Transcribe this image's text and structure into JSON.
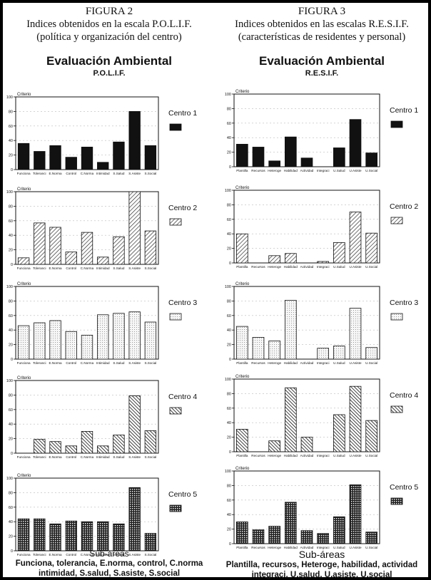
{
  "figures": [
    {
      "number": "FIGURA 2",
      "subtitle1": "Indices obtenidos en la escala P.O.L.I.F.",
      "subtitle2": "(política y organización del centro)",
      "eval_title": "Evaluación Ambiental",
      "scale": "P.O.L.I.F.",
      "x_title": "Sub-áreas",
      "caption1": "Funciona, tolerancia, E.norma, control, C.norma",
      "caption2": "intimidad, S.salud, S.asiste, S.social"
    },
    {
      "number": "FIGURA 3",
      "subtitle1": "Indices obtenidos en las escalas R.E.S.I.F.",
      "subtitle2": "(características de residentes y personal)",
      "eval_title": "Evaluación Ambiental",
      "scale": "R.E.S.I.F.",
      "x_title": "Sub-áreas",
      "caption1": "Plantilla, recursos, Heteroge, habilidad, actividad",
      "caption2": "integraci, U.salud, U.asiste, U.social"
    }
  ],
  "chart_data": [
    {
      "type": "bar",
      "figure": "FIGURA 2",
      "title": "Evaluación Ambiental P.O.L.I.F.",
      "legend": "Centro 1",
      "pattern": "solid",
      "ylabel": "Criterio",
      "xlabel": "",
      "ylim": [
        0,
        100
      ],
      "yticks": [
        0,
        20,
        40,
        60,
        80,
        100
      ],
      "grid": true,
      "legend_position": "right",
      "categories": [
        "Funciona",
        "Toleranci",
        "E.Norma",
        "Control",
        "C.Norma",
        "Intimidad",
        "S.Salud",
        "S.Asiste",
        "S.Social"
      ],
      "values": [
        36,
        25,
        33,
        17,
        31,
        10,
        38,
        80,
        33
      ]
    },
    {
      "type": "bar",
      "figure": "FIGURA 2",
      "title": "",
      "legend": "Centro 2",
      "pattern": "hatch-right",
      "ylabel": "Criterio",
      "xlabel": "",
      "ylim": [
        0,
        100
      ],
      "yticks": [
        0,
        20,
        40,
        60,
        80,
        100
      ],
      "grid": true,
      "legend_position": "right",
      "categories": [
        "Funciona",
        "Toleranci",
        "E.Norma",
        "Control",
        "C.Norma",
        "Intimidad",
        "S.Salud",
        "S.Asiste",
        "S.Social"
      ],
      "values": [
        9,
        57,
        51,
        17,
        44,
        10,
        38,
        100,
        46
      ]
    },
    {
      "type": "bar",
      "figure": "FIGURA 2",
      "title": "",
      "legend": "Centro 3",
      "pattern": "dots",
      "ylabel": "Criterio",
      "xlabel": "",
      "ylim": [
        0,
        100
      ],
      "yticks": [
        0,
        20,
        40,
        60,
        80,
        100
      ],
      "grid": true,
      "legend_position": "right",
      "categories": [
        "Funciona",
        "Toleranci",
        "E.Norma",
        "Control",
        "C.Norma",
        "Intimidad",
        "S.Salud",
        "S.Asiste",
        "S.Social"
      ],
      "values": [
        46,
        50,
        53,
        38,
        33,
        61,
        63,
        65,
        51
      ]
    },
    {
      "type": "bar",
      "figure": "FIGURA 2",
      "title": "",
      "legend": "Centro 4",
      "pattern": "hatch-left",
      "ylabel": "Criterio",
      "xlabel": "",
      "ylim": [
        0,
        100
      ],
      "yticks": [
        0,
        20,
        40,
        60,
        80,
        100
      ],
      "grid": true,
      "legend_position": "right",
      "categories": [
        "Funciona",
        "Toleranci",
        "E.Norma",
        "Control",
        "C.Norma",
        "Intimidad",
        "S.Salud",
        "S.Asiste",
        "S.Social"
      ],
      "values": [
        0,
        19,
        16,
        10,
        30,
        10,
        25,
        79,
        31
      ]
    },
    {
      "type": "bar",
      "figure": "FIGURA 2",
      "title": "",
      "legend": "Centro 5",
      "pattern": "grid",
      "ylabel": "Criterio",
      "xlabel": "Sub-áreas",
      "ylim": [
        0,
        100
      ],
      "yticks": [
        0,
        20,
        40,
        60,
        80,
        100
      ],
      "grid": true,
      "legend_position": "right",
      "categories": [
        "Funciona",
        "Toleranci",
        "E.Norma",
        "Control",
        "C.Norma",
        "Intimidad",
        "S.Salud",
        "S.Asiste",
        "S.Social"
      ],
      "values": [
        44,
        44,
        37,
        41,
        40,
        40,
        37,
        87,
        24
      ]
    },
    {
      "type": "bar",
      "figure": "FIGURA 3",
      "title": "Evaluación Ambiental R.E.S.I.F.",
      "legend": "Centro 1",
      "pattern": "solid",
      "ylabel": "Criterio",
      "xlabel": "",
      "ylim": [
        0,
        100
      ],
      "yticks": [
        0,
        20,
        40,
        60,
        80,
        100
      ],
      "grid": true,
      "legend_position": "right",
      "categories": [
        "Plantilla",
        "Recursos",
        "Heteroge",
        "Habilidad",
        "Actividad",
        "Integraci",
        "U.Salud",
        "U.Asiste",
        "U.Social"
      ],
      "values": [
        31,
        27,
        8,
        41,
        12,
        0,
        26,
        65,
        19
      ]
    },
    {
      "type": "bar",
      "figure": "FIGURA 3",
      "title": "",
      "legend": "Centro 2",
      "pattern": "hatch-right",
      "ylabel": "Criterio",
      "xlabel": "",
      "ylim": [
        0,
        100
      ],
      "yticks": [
        0,
        20,
        40,
        60,
        80,
        100
      ],
      "grid": true,
      "legend_position": "right",
      "categories": [
        "Plantilla",
        "Recursos",
        "Heteroge",
        "Habilidad",
        "Actividad",
        "Integraci",
        "U.Salud",
        "U.Asiste",
        "U.Social"
      ],
      "values": [
        40,
        0,
        10,
        13,
        0,
        2,
        28,
        70,
        41
      ]
    },
    {
      "type": "bar",
      "figure": "FIGURA 3",
      "title": "",
      "legend": "Centro 3",
      "pattern": "dots",
      "ylabel": "Criterio",
      "xlabel": "",
      "ylim": [
        0,
        100
      ],
      "yticks": [
        0,
        20,
        40,
        60,
        80,
        100
      ],
      "grid": true,
      "legend_position": "right",
      "categories": [
        "Plantilla",
        "Recursos",
        "Heteroge",
        "Habilidad",
        "Actividad",
        "Integraci",
        "U.Salud",
        "U.Asiste",
        "U.Social"
      ],
      "values": [
        45,
        30,
        25,
        81,
        0,
        15,
        18,
        70,
        16
      ]
    },
    {
      "type": "bar",
      "figure": "FIGURA 3",
      "title": "",
      "legend": "Centro 4",
      "pattern": "hatch-left",
      "ylabel": "Criterio",
      "xlabel": "",
      "ylim": [
        0,
        100
      ],
      "yticks": [
        0,
        20,
        40,
        60,
        80,
        100
      ],
      "grid": true,
      "legend_position": "right",
      "categories": [
        "Plantilla",
        "Recursos",
        "Heteroge",
        "Habilidad",
        "Actividad",
        "Integraci",
        "U.Salud",
        "U.Asiste",
        "U.Social"
      ],
      "values": [
        31,
        0,
        15,
        88,
        20,
        0,
        51,
        90,
        43
      ]
    },
    {
      "type": "bar",
      "figure": "FIGURA 3",
      "title": "",
      "legend": "Centro 5",
      "pattern": "grid",
      "ylabel": "Criterio",
      "xlabel": "Sub-áreas",
      "ylim": [
        0,
        100
      ],
      "yticks": [
        0,
        20,
        40,
        60,
        80,
        100
      ],
      "grid": true,
      "legend_position": "right",
      "categories": [
        "Plantilla",
        "Recursos",
        "Heteroge",
        "Habilidad",
        "Actividad",
        "Integraci",
        "U.Salud",
        "U.Asiste",
        "U.Social"
      ],
      "values": [
        30,
        19,
        24,
        57,
        18,
        14,
        37,
        81,
        16
      ]
    }
  ]
}
